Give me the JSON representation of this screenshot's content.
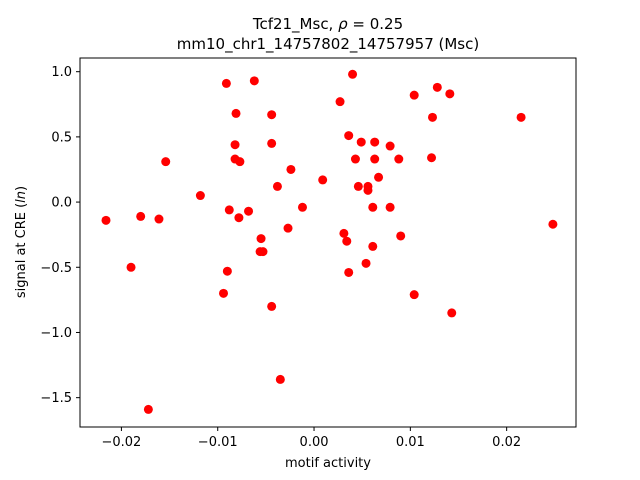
{
  "chart_data": {
    "type": "scatter",
    "title_line1": "Tcf21_Msc, ρ = 0.25",
    "title_line2": "mm10_chr1_14757802_14757957 (Msc)",
    "xlabel": "motif activity",
    "ylabel": "signal at CRE (ln)",
    "xlim": [
      -0.0243,
      0.0272
    ],
    "ylim": [
      -1.725,
      1.105
    ],
    "xticks": [
      {
        "value": -0.02,
        "label": "−0.02"
      },
      {
        "value": -0.01,
        "label": "−0.01"
      },
      {
        "value": 0.0,
        "label": "0.00"
      },
      {
        "value": 0.01,
        "label": "0.01"
      },
      {
        "value": 0.02,
        "label": "0.02"
      }
    ],
    "yticks": [
      {
        "value": -1.5,
        "label": "−1.5"
      },
      {
        "value": -1.0,
        "label": "−1.0"
      },
      {
        "value": -0.5,
        "label": "−0.5"
      },
      {
        "value": 0.0,
        "label": "0.0"
      },
      {
        "value": 0.5,
        "label": "0.5"
      },
      {
        "value": 1.0,
        "label": "1.0"
      }
    ],
    "grid": false,
    "point_color": "#ff0000",
    "points": [
      {
        "x": -0.0216,
        "y": -0.14
      },
      {
        "x": -0.018,
        "y": -0.11
      },
      {
        "x": -0.019,
        "y": -0.5
      },
      {
        "x": -0.0161,
        "y": -0.13
      },
      {
        "x": -0.0172,
        "y": -1.59
      },
      {
        "x": -0.0154,
        "y": 0.31
      },
      {
        "x": -0.0118,
        "y": 0.05
      },
      {
        "x": -0.0091,
        "y": 0.91
      },
      {
        "x": -0.0062,
        "y": 0.93
      },
      {
        "x": -0.0081,
        "y": 0.68
      },
      {
        "x": -0.0044,
        "y": 0.67
      },
      {
        "x": -0.0082,
        "y": 0.44
      },
      {
        "x": -0.0044,
        "y": 0.45
      },
      {
        "x": -0.0082,
        "y": 0.33
      },
      {
        "x": -0.0077,
        "y": 0.31
      },
      {
        "x": -0.0024,
        "y": 0.25
      },
      {
        "x": -0.0038,
        "y": 0.12
      },
      {
        "x": -0.0088,
        "y": -0.06
      },
      {
        "x": -0.0068,
        "y": -0.07
      },
      {
        "x": -0.0078,
        "y": -0.12
      },
      {
        "x": -0.0012,
        "y": -0.04
      },
      {
        "x": -0.0027,
        "y": -0.2
      },
      {
        "x": -0.0055,
        "y": -0.28
      },
      {
        "x": -0.0056,
        "y": -0.38
      },
      {
        "x": -0.0053,
        "y": -0.38
      },
      {
        "x": -0.009,
        "y": -0.53
      },
      {
        "x": -0.0094,
        "y": -0.7
      },
      {
        "x": -0.0044,
        "y": -0.8
      },
      {
        "x": -0.0035,
        "y": -1.36
      },
      {
        "x": 0.0009,
        "y": 0.17
      },
      {
        "x": 0.0027,
        "y": 0.77
      },
      {
        "x": 0.004,
        "y": 0.98
      },
      {
        "x": 0.0036,
        "y": 0.51
      },
      {
        "x": 0.0049,
        "y": 0.46
      },
      {
        "x": 0.0063,
        "y": 0.46
      },
      {
        "x": 0.0079,
        "y": 0.43
      },
      {
        "x": 0.0043,
        "y": 0.33
      },
      {
        "x": 0.0063,
        "y": 0.33
      },
      {
        "x": 0.0088,
        "y": 0.33
      },
      {
        "x": 0.0067,
        "y": 0.19
      },
      {
        "x": 0.0046,
        "y": 0.12
      },
      {
        "x": 0.0056,
        "y": 0.12
      },
      {
        "x": 0.0056,
        "y": 0.09
      },
      {
        "x": 0.0061,
        "y": -0.04
      },
      {
        "x": 0.0079,
        "y": -0.04
      },
      {
        "x": 0.0031,
        "y": -0.24
      },
      {
        "x": 0.0034,
        "y": -0.3
      },
      {
        "x": 0.009,
        "y": -0.26
      },
      {
        "x": 0.0061,
        "y": -0.34
      },
      {
        "x": 0.0054,
        "y": -0.47
      },
      {
        "x": 0.0036,
        "y": -0.54
      },
      {
        "x": 0.0104,
        "y": 0.82
      },
      {
        "x": 0.0128,
        "y": 0.88
      },
      {
        "x": 0.0141,
        "y": 0.83
      },
      {
        "x": 0.0123,
        "y": 0.65
      },
      {
        "x": 0.0122,
        "y": 0.34
      },
      {
        "x": 0.0104,
        "y": -0.71
      },
      {
        "x": 0.0143,
        "y": -0.85
      },
      {
        "x": 0.0215,
        "y": 0.65
      },
      {
        "x": 0.0248,
        "y": -0.17
      }
    ]
  }
}
